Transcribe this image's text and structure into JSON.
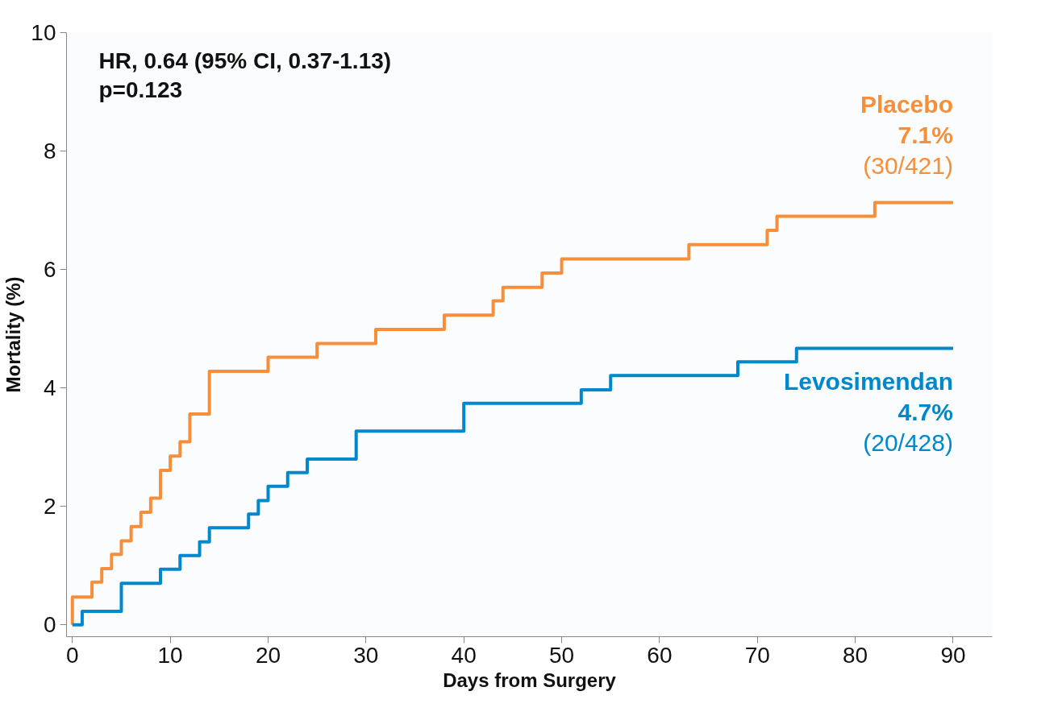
{
  "chart_data": {
    "type": "step",
    "xlabel": "Days from Surgery",
    "ylabel": "Mortality (%)",
    "xlim": [
      -0.6,
      94
    ],
    "ylim": [
      -0.2,
      10
    ],
    "xticks": [
      0,
      10,
      20,
      30,
      40,
      50,
      60,
      70,
      80,
      90
    ],
    "yticks": [
      0,
      2,
      4,
      6,
      8,
      10
    ],
    "grid": false,
    "annotations": [
      "HR, 0.64 (95% CI, 0.37-1.13)",
      "p=0.123",
      "7.1%",
      "(30/421)",
      "4.7%",
      "(20/428)"
    ],
    "series": [
      {
        "name": "Placebo",
        "color": "#f78f3a",
        "x": [
          0,
          0,
          2,
          3,
          4,
          5,
          6,
          7,
          8,
          9,
          10,
          11,
          12,
          14,
          20,
          25,
          31,
          38,
          43,
          44,
          48,
          50,
          63,
          71,
          72,
          82,
          90
        ],
        "values": [
          0,
          0.47,
          0.72,
          0.95,
          1.19,
          1.42,
          1.66,
          1.9,
          2.14,
          2.61,
          2.85,
          3.09,
          3.56,
          4.28,
          4.52,
          4.75,
          4.99,
          5.23,
          5.47,
          5.7,
          5.94,
          6.18,
          6.42,
          6.66,
          6.9,
          7.13,
          7.13
        ]
      },
      {
        "name": "Levosimendan",
        "color": "#0088cc",
        "x": [
          0,
          1,
          5,
          9,
          11,
          13,
          14,
          18,
          19,
          20,
          22,
          24,
          29,
          40,
          52,
          55,
          68,
          74,
          90
        ],
        "values": [
          0,
          0.23,
          0.7,
          0.94,
          1.17,
          1.4,
          1.64,
          1.87,
          2.1,
          2.34,
          2.57,
          2.8,
          3.27,
          3.74,
          3.97,
          4.21,
          4.44,
          4.67,
          4.67
        ]
      }
    ]
  }
}
